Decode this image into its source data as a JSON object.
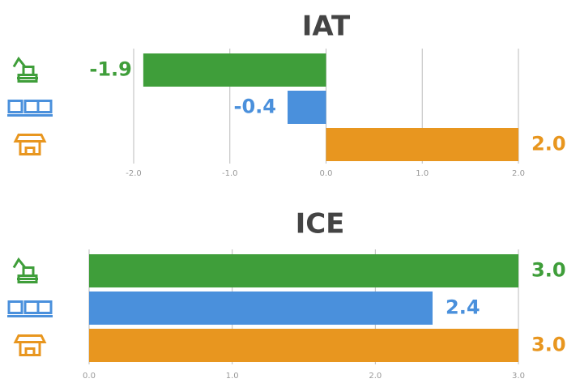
{
  "chart_data": [
    {
      "type": "bar",
      "orientation": "horizontal",
      "title": "IAT",
      "categories": [
        null,
        null,
        null
      ],
      "values": [
        -1.9,
        -0.4,
        2.0
      ],
      "value_labels": [
        "-1.9",
        "-0.4",
        "2.0"
      ],
      "colors": [
        "#3f9e3a",
        "#4a90dc",
        "#e8961f"
      ],
      "xlim": [
        -2,
        2
      ],
      "xticks": [
        {
          "value": -2,
          "label": "-2.0"
        },
        {
          "value": -1,
          "label": "-1.0"
        },
        {
          "value": 0,
          "label": "0.0"
        },
        {
          "value": 1,
          "label": "1.0"
        },
        {
          "value": 2,
          "label": "2.0"
        }
      ],
      "grid": true
    },
    {
      "type": "bar",
      "orientation": "horizontal",
      "title": "ICE",
      "categories": [
        null,
        null,
        null
      ],
      "values": [
        3.0,
        2.4,
        3.0
      ],
      "value_labels": [
        "3.0",
        "2.4",
        "3.0"
      ],
      "colors": [
        "#3f9e3a",
        "#4a90dc",
        "#e8961f"
      ],
      "xlim": [
        0,
        3
      ],
      "xticks": [
        {
          "value": 0,
          "label": "0.0"
        },
        {
          "value": 1,
          "label": "1.0"
        },
        {
          "value": 2,
          "label": "2.0"
        },
        {
          "value": 3,
          "label": "3.0"
        }
      ],
      "grid": true
    }
  ]
}
